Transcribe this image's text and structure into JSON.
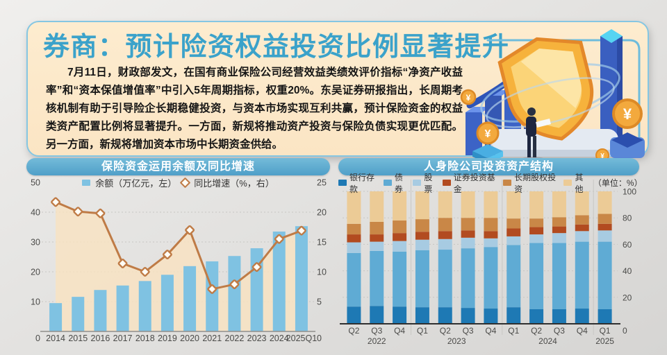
{
  "page": {
    "title": "券商：预计险资权益投资比例显著提升",
    "intro": "7月11日，财政部发文，在国有商业保险公司经营效益类绩效评价指标“净资产收益率”和“资本保值增值率”中引入5年周期指标，权重20%。东吴证券研报指出，长周期考核机制有助于引导险企长期稳健投资，与资本市场实现互利共赢，预计保险资金的权益类资产配置比例将显著提升。一方面，新规将推动资产投资与保险负债实现更优匹配。另一方面，新规将增加资本市场中长期资金供给。"
  },
  "icons": {
    "yuan": "¥"
  },
  "colors": {
    "title_blue": "#3ba2ca",
    "banner_cream": "#fce9cd",
    "banner_border": "#85c6e2",
    "pill_blue": "#55a7cf",
    "bar_blue": "#7fc2e2",
    "line_orange": "#bf7b46",
    "area_cream": "#f9e2c0",
    "gold": "#f3a93d"
  },
  "chart_data": [
    {
      "type": "bar",
      "title": "保险资金运用余额及同比增速",
      "categories": [
        "2014",
        "2015",
        "2016",
        "2017",
        "2018",
        "2019",
        "2020",
        "2021",
        "2022",
        "2023",
        "2024",
        "2025Q1"
      ],
      "series": [
        {
          "name": "余额（万亿元，左）",
          "kind": "bar",
          "axis": "left",
          "color": "#7fc2e2",
          "values": [
            9.5,
            11.6,
            13.9,
            15.4,
            16.9,
            19.0,
            21.9,
            23.5,
            25.3,
            27.9,
            33.5,
            35.3
          ]
        },
        {
          "name": "同比增速（%，右）",
          "kind": "line",
          "axis": "right",
          "color": "#bf7b46",
          "values": [
            21.7,
            20.1,
            19.8,
            11.4,
            10.0,
            12.9,
            17.0,
            7.1,
            7.9,
            10.8,
            15.5,
            16.9
          ]
        }
      ],
      "area_fill": "#f9e2c0",
      "left_axis": {
        "min": 0,
        "max": 50,
        "ticks": [
          0,
          10,
          20,
          30,
          40,
          50
        ]
      },
      "right_axis": {
        "min": 0,
        "max": 25,
        "ticks": [
          0,
          5,
          10,
          15,
          20,
          25
        ]
      },
      "grid": "dotted-horizontal",
      "legend_position": "top-center"
    },
    {
      "type": "bar",
      "subtype": "stacked-percent",
      "title": "人身险公司投资资产结构",
      "unit_label": "（单位：%）",
      "categories": [
        "Q2",
        "Q3",
        "Q4",
        "Q1",
        "Q2",
        "Q3",
        "Q4",
        "Q1",
        "Q2",
        "Q3",
        "Q4",
        "Q1"
      ],
      "year_groups": [
        {
          "label": "2022",
          "span": 3
        },
        {
          "label": "2023",
          "span": 4
        },
        {
          "label": "2024",
          "span": 4
        },
        {
          "label": "2025",
          "span": 1
        }
      ],
      "series": [
        {
          "name": "银行存款",
          "color": "#1e79b4",
          "values": [
            13,
            13.5,
            13,
            12.5,
            12.5,
            12,
            11.5,
            12.5,
            11,
            11,
            11.5,
            11
          ]
        },
        {
          "name": "债券",
          "color": "#5fabd4",
          "values": [
            40.5,
            41.5,
            41.5,
            43,
            43.5,
            45,
            46.5,
            47,
            50,
            50,
            50.5,
            51
          ]
        },
        {
          "name": "股票",
          "color": "#a7cbe2",
          "values": [
            8,
            7,
            8,
            8,
            8,
            8,
            6.5,
            6.5,
            6.5,
            7.5,
            8,
            8.5
          ]
        },
        {
          "name": "证券投资基金",
          "color": "#b24b20",
          "values": [
            6,
            5.5,
            6,
            6,
            6,
            5.5,
            5.5,
            6,
            5.5,
            5,
            5,
            5
          ]
        },
        {
          "name": "长期股权投资",
          "color": "#c98747",
          "values": [
            8,
            9.5,
            9.5,
            9.5,
            10,
            9.5,
            10,
            7.5,
            6.5,
            7,
            7,
            7.5
          ]
        },
        {
          "name": "其他",
          "color": "#eccb96",
          "values": [
            24.5,
            23,
            22,
            21,
            20,
            20,
            20,
            20.5,
            20.5,
            19.5,
            18,
            17
          ]
        }
      ],
      "axis": {
        "min": 0,
        "max": 100,
        "ticks": [
          0,
          20,
          40,
          60,
          80,
          100
        ]
      },
      "grid": "dotted-horizontal",
      "legend_position": "top-center"
    }
  ]
}
